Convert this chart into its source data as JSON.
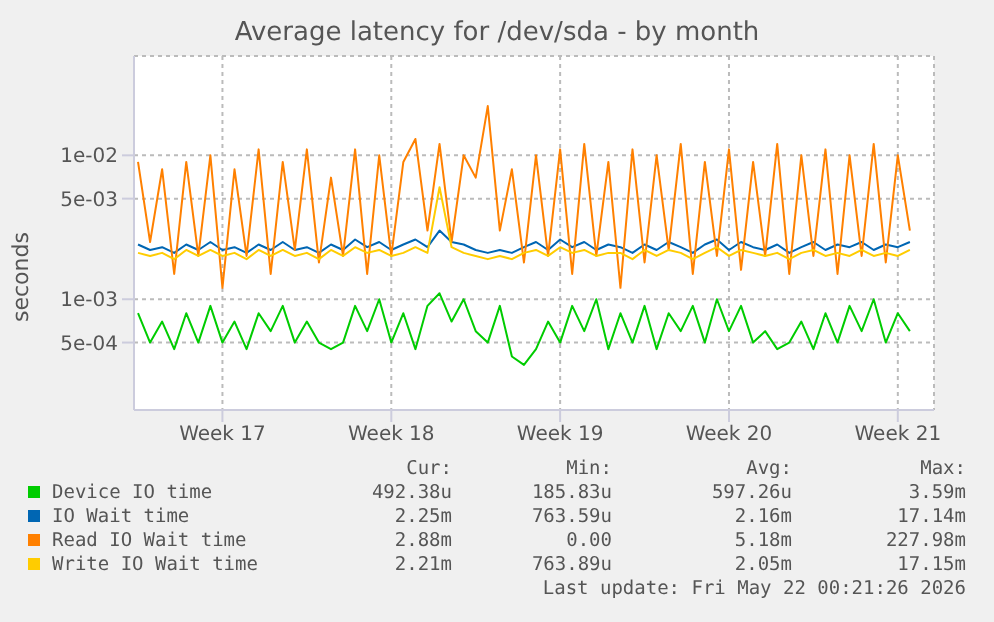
{
  "chart_data": {
    "type": "line",
    "title": "Average latency for /dev/sda - by month",
    "ylabel": "seconds",
    "log": "y",
    "grid": true,
    "legend": "bottom",
    "marker": "none",
    "line_style": "solid",
    "xlim": [
      "2026-04-19T20:00",
      "2026-05-23T00:00"
    ],
    "xticks": [
      {
        "value": "2026-04-23T12:00",
        "label": "Week 17"
      },
      {
        "value": "2026-04-30T12:00",
        "label": "Week 18"
      },
      {
        "value": "2026-05-07T12:00",
        "label": "Week 19"
      },
      {
        "value": "2026-05-14T12:00",
        "label": "Week 20"
      },
      {
        "value": "2026-05-21T12:00",
        "label": "Week 21"
      }
    ],
    "ylim": [
      0.00017,
      0.049
    ],
    "yticks": [
      {
        "value": 0.0005,
        "label": "5e-04"
      },
      {
        "value": 0.001,
        "label": "1e-03"
      },
      {
        "value": 0.005,
        "label": "5e-03"
      },
      {
        "value": 0.01,
        "label": "1e-02"
      }
    ],
    "x": [
      "2026-04-20T00:00",
      "2026-04-20T12:00",
      "2026-04-21T00:00",
      "2026-04-21T12:00",
      "2026-04-22T00:00",
      "2026-04-22T12:00",
      "2026-04-23T00:00",
      "2026-04-23T12:00",
      "2026-04-24T00:00",
      "2026-04-24T12:00",
      "2026-04-25T00:00",
      "2026-04-25T12:00",
      "2026-04-26T00:00",
      "2026-04-26T12:00",
      "2026-04-27T00:00",
      "2026-04-27T12:00",
      "2026-04-28T00:00",
      "2026-04-28T12:00",
      "2026-04-29T00:00",
      "2026-04-29T12:00",
      "2026-04-30T00:00",
      "2026-04-30T12:00",
      "2026-05-01T00:00",
      "2026-05-01T12:00",
      "2026-05-02T00:00",
      "2026-05-02T12:00",
      "2026-05-03T00:00",
      "2026-05-03T12:00",
      "2026-05-04T00:00",
      "2026-05-04T12:00",
      "2026-05-05T00:00",
      "2026-05-05T12:00",
      "2026-05-06T00:00",
      "2026-05-06T12:00",
      "2026-05-07T00:00",
      "2026-05-07T12:00",
      "2026-05-08T00:00",
      "2026-05-08T12:00",
      "2026-05-09T00:00",
      "2026-05-09T12:00",
      "2026-05-10T00:00",
      "2026-05-10T12:00",
      "2026-05-11T00:00",
      "2026-05-11T12:00",
      "2026-05-12T00:00",
      "2026-05-12T12:00",
      "2026-05-13T00:00",
      "2026-05-13T12:00",
      "2026-05-14T00:00",
      "2026-05-14T12:00",
      "2026-05-15T00:00",
      "2026-05-15T12:00",
      "2026-05-16T00:00",
      "2026-05-16T12:00",
      "2026-05-17T00:00",
      "2026-05-17T12:00",
      "2026-05-18T00:00",
      "2026-05-18T12:00",
      "2026-05-19T00:00",
      "2026-05-19T12:00",
      "2026-05-20T00:00",
      "2026-05-20T12:00",
      "2026-05-21T00:00",
      "2026-05-21T12:00",
      "2026-05-22T00:00"
    ],
    "series": [
      {
        "name": "Device IO time",
        "color": "#00cc00",
        "values": [
          0.0008,
          0.0005,
          0.0007,
          0.00045,
          0.0008,
          0.0005,
          0.0009,
          0.0005,
          0.0007,
          0.00045,
          0.0008,
          0.0006,
          0.0009,
          0.0005,
          0.0007,
          0.0005,
          0.00045,
          0.0005,
          0.0009,
          0.0006,
          0.001,
          0.0005,
          0.0008,
          0.00045,
          0.0009,
          0.0011,
          0.0007,
          0.001,
          0.0006,
          0.0005,
          0.0009,
          0.0004,
          0.00035,
          0.00045,
          0.0007,
          0.0005,
          0.0009,
          0.0006,
          0.001,
          0.00045,
          0.0008,
          0.0005,
          0.0009,
          0.00045,
          0.0008,
          0.0006,
          0.0009,
          0.0005,
          0.001,
          0.0006,
          0.0009,
          0.0005,
          0.0006,
          0.00045,
          0.0005,
          0.0007,
          0.00045,
          0.0008,
          0.0005,
          0.0009,
          0.0006,
          0.001,
          0.0005,
          0.0008,
          0.0006
        ]
      },
      {
        "name": "IO Wait time",
        "color": "#0066b3",
        "values": [
          0.0024,
          0.0022,
          0.0023,
          0.0021,
          0.0024,
          0.0022,
          0.0025,
          0.0022,
          0.0023,
          0.0021,
          0.0024,
          0.0022,
          0.0025,
          0.0022,
          0.0023,
          0.0021,
          0.0024,
          0.0022,
          0.0026,
          0.0023,
          0.0025,
          0.0022,
          0.0024,
          0.0026,
          0.0023,
          0.003,
          0.0025,
          0.0024,
          0.0022,
          0.0021,
          0.0022,
          0.0021,
          0.0023,
          0.0025,
          0.0022,
          0.0026,
          0.0023,
          0.0025,
          0.0022,
          0.0024,
          0.0023,
          0.0021,
          0.0024,
          0.0022,
          0.0025,
          0.0023,
          0.0021,
          0.0024,
          0.0026,
          0.0022,
          0.0025,
          0.0023,
          0.0022,
          0.0024,
          0.0021,
          0.0023,
          0.0025,
          0.0022,
          0.0024,
          0.0023,
          0.0025,
          0.0022,
          0.0024,
          0.0023,
          0.0025
        ]
      },
      {
        "name": "Read IO Wait time",
        "color": "#ff8000",
        "values": [
          0.009,
          0.0025,
          0.008,
          0.0015,
          0.009,
          0.002,
          0.01,
          0.0012,
          0.008,
          0.002,
          0.011,
          0.0015,
          0.009,
          0.0022,
          0.011,
          0.0018,
          0.007,
          0.002,
          0.011,
          0.0015,
          0.01,
          0.002,
          0.009,
          0.013,
          0.003,
          0.012,
          0.0025,
          0.01,
          0.007,
          0.022,
          0.003,
          0.008,
          0.0018,
          0.01,
          0.002,
          0.011,
          0.0015,
          0.012,
          0.002,
          0.009,
          0.0012,
          0.011,
          0.0018,
          0.01,
          0.0022,
          0.012,
          0.0015,
          0.009,
          0.002,
          0.011,
          0.0016,
          0.009,
          0.002,
          0.012,
          0.0015,
          0.01,
          0.002,
          0.011,
          0.0015,
          0.01,
          0.002,
          0.012,
          0.0018,
          0.01,
          0.003
        ]
      },
      {
        "name": "Write IO Wait time",
        "color": "#ffcc00",
        "values": [
          0.0021,
          0.002,
          0.0021,
          0.0019,
          0.0022,
          0.002,
          0.0022,
          0.002,
          0.0021,
          0.0019,
          0.0022,
          0.002,
          0.0022,
          0.002,
          0.0021,
          0.0019,
          0.0022,
          0.002,
          0.0023,
          0.0021,
          0.0022,
          0.002,
          0.0021,
          0.0023,
          0.0021,
          0.006,
          0.0023,
          0.0021,
          0.002,
          0.0019,
          0.002,
          0.0019,
          0.0021,
          0.0022,
          0.002,
          0.0023,
          0.0021,
          0.0022,
          0.002,
          0.0021,
          0.0021,
          0.0019,
          0.0022,
          0.002,
          0.0022,
          0.0021,
          0.0019,
          0.0021,
          0.0023,
          0.002,
          0.0022,
          0.0021,
          0.002,
          0.0021,
          0.0019,
          0.0021,
          0.0022,
          0.002,
          0.0021,
          0.002,
          0.0022,
          0.002,
          0.0021,
          0.002,
          0.0022
        ]
      }
    ],
    "annotations": [
      "Cur:",
      "Min:",
      "Avg:",
      "Max:",
      "492.38u",
      "185.83u",
      "597.26u",
      "3.59m",
      "2.25m",
      "763.59u",
      "2.16m",
      "17.14m",
      "2.88m",
      "0.00",
      "5.18m",
      "227.98m",
      "2.21m",
      "763.89u",
      "2.05m",
      "17.15m",
      "Last update: Fri May 22 00:21:26 2026"
    ]
  }
}
